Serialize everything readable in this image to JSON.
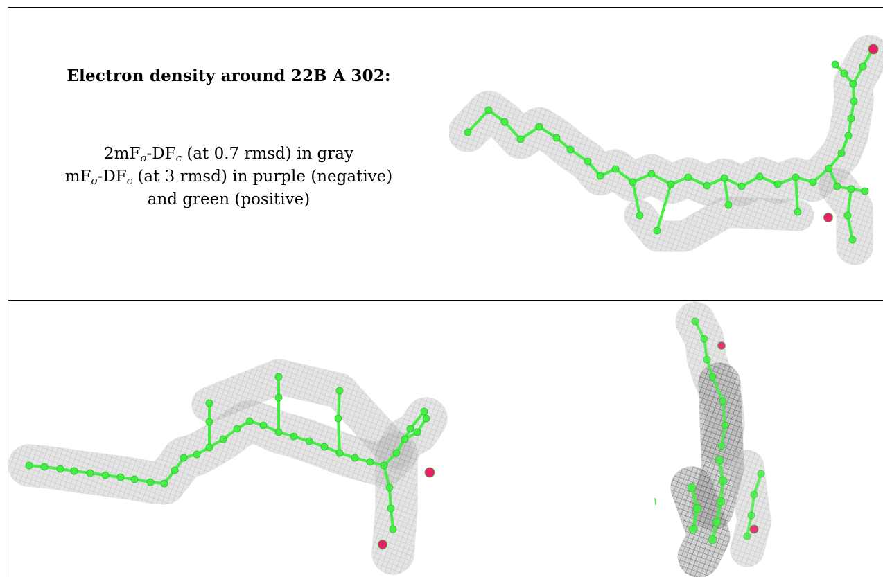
{
  "caption": {
    "title": "Electron density around 22B A 302:",
    "map1": {
      "prefix": "2mF",
      "sub1": "o",
      "mid": "-DF",
      "sub2": "c",
      "rest": " (at 0.7 rmsd) in gray"
    },
    "map2": {
      "prefix": "mF",
      "sub1": "o",
      "mid": "-DF",
      "sub2": "c",
      "rest": " (at 3 rmsd) in purple (negative)"
    },
    "line3": "and green (positive)"
  },
  "colors": {
    "carbon": "#44ee44",
    "oxygen": "#e8206a",
    "mesh": "#8a8a8a",
    "border": "#000000"
  }
}
